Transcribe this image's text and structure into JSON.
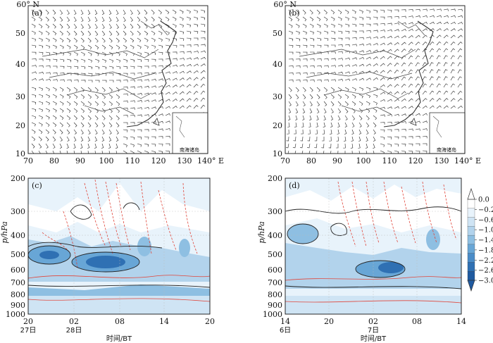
{
  "figure": {
    "panels": {
      "a": {
        "label": "(a)",
        "lat_ticks": [
          "10",
          "20",
          "30",
          "40",
          "50",
          "60° N"
        ],
        "lon_ticks": [
          "70",
          "80",
          "90",
          "100",
          "110",
          "120",
          "130",
          "140° E"
        ],
        "inset_label": "南海诸岛"
      },
      "b": {
        "label": "(b)",
        "lat_ticks": [
          "10",
          "20",
          "30",
          "40",
          "50",
          "60° N"
        ],
        "lon_ticks": [
          "70",
          "80",
          "90",
          "100",
          "110",
          "120",
          "130",
          "140° E"
        ],
        "inset_label": "南海诸岛"
      },
      "c": {
        "label": "(c)",
        "y_axis_label": "p/hPa",
        "y_ticks": [
          "200",
          "300",
          "400",
          "500",
          "600",
          "700",
          "800",
          "900",
          "1000"
        ],
        "x_ticks": [
          "20",
          "02",
          "08",
          "14",
          "20"
        ],
        "x_date_labels": [
          "27日",
          "28日"
        ],
        "x_axis_label": "时间/BT"
      },
      "d": {
        "label": "(d)",
        "y_axis_label": "p/hPa",
        "y_ticks": [
          "200",
          "300",
          "400",
          "500",
          "600",
          "700",
          "800",
          "900",
          "1000"
        ],
        "x_ticks": [
          "14",
          "20",
          "02",
          "08",
          "14"
        ],
        "x_date_labels": [
          "6日",
          "7日"
        ],
        "x_axis_label": "时间/BT"
      }
    },
    "colorbar": {
      "ticks": [
        "0.0",
        "−0.2",
        "−0.6",
        "−1.0",
        "−1.4",
        "−1.8",
        "−2.2",
        "−2.6",
        "−3.0"
      ],
      "colors": [
        "#ffffff",
        "#e8f3fb",
        "#cfe4f4",
        "#b2d3ec",
        "#8ebfe2",
        "#68a6d6",
        "#4a8cc8",
        "#2f70b3",
        "#1f5aa0"
      ]
    },
    "colors": {
      "contour_red": "#e0453a",
      "contour_black": "#222222",
      "map_line": "#333333"
    }
  }
}
